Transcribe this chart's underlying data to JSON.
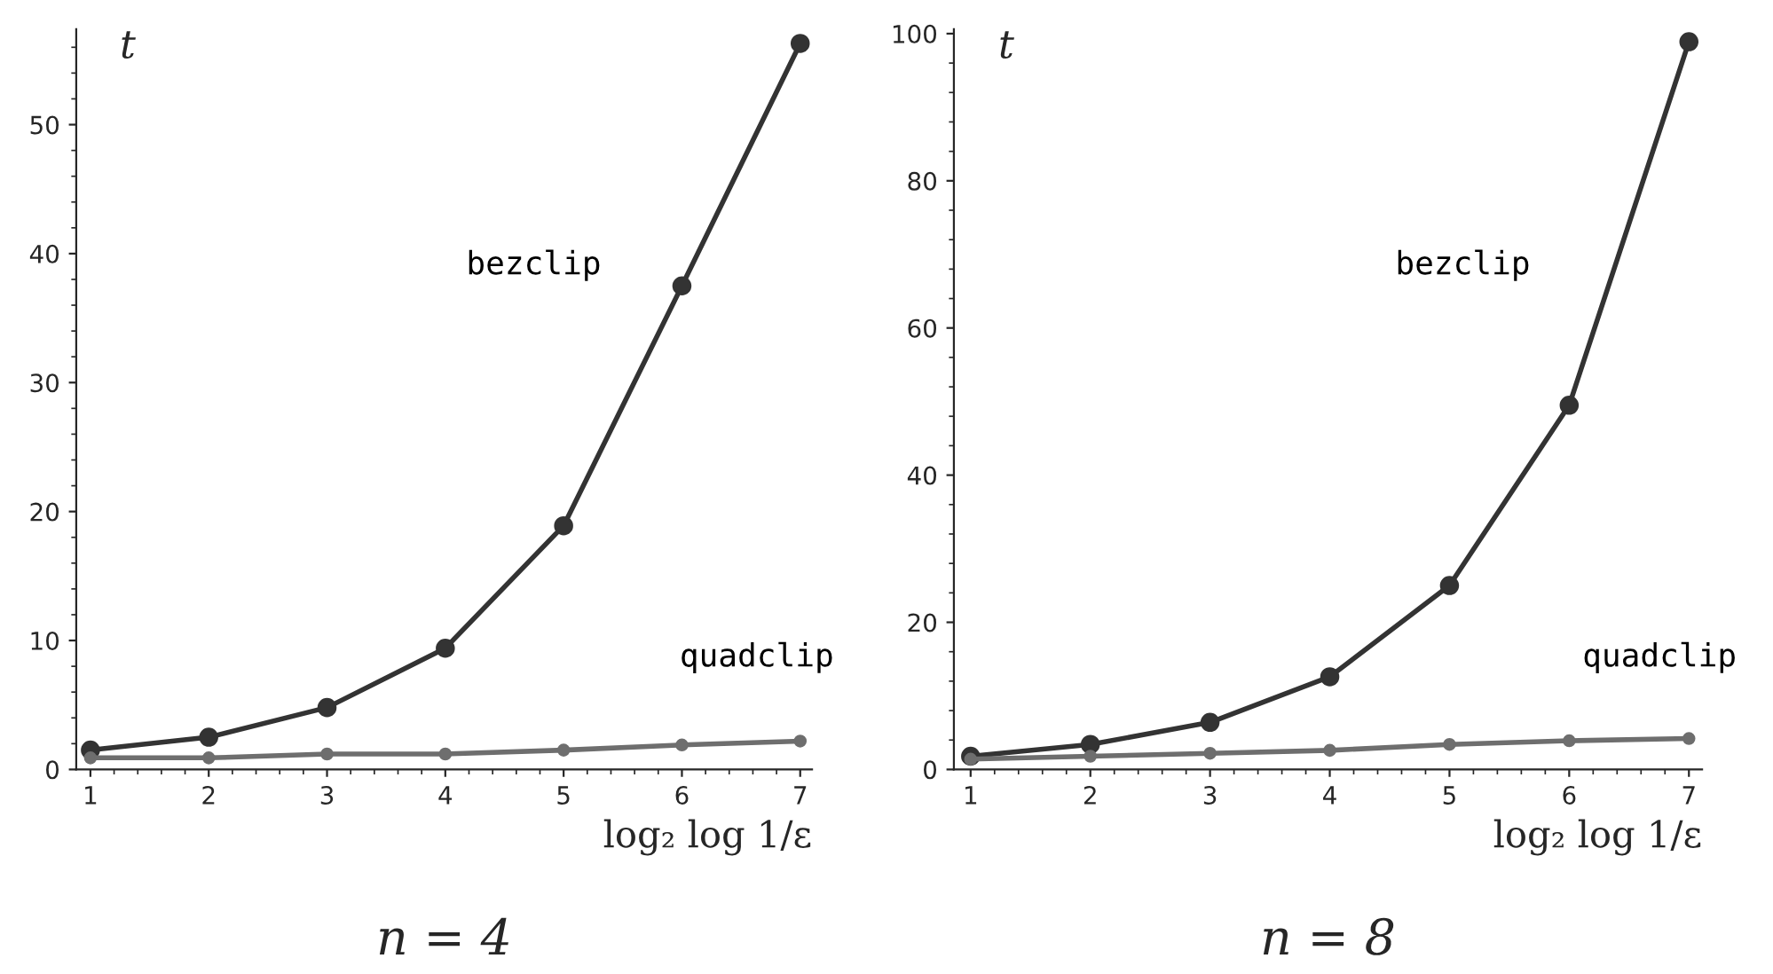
{
  "chart_data": [
    {
      "type": "line",
      "title": "n = 4",
      "xlabel": "log₂ log 1/ε",
      "ylabel": "t",
      "x": [
        1,
        2,
        3,
        4,
        5,
        6,
        7
      ],
      "xlim": [
        0.88,
        7.1
      ],
      "xticks": [
        1,
        2,
        3,
        4,
        5,
        6,
        7
      ],
      "ylim": [
        0,
        57.4
      ],
      "yticks": [
        0,
        10,
        20,
        30,
        40,
        50
      ],
      "marker": "circle",
      "line_style": "solid",
      "grid": false,
      "legend": false,
      "series": [
        {
          "name": "bezclip",
          "color": "#333333",
          "values": [
            1.5,
            2.5,
            4.8,
            9.4,
            18.9,
            37.5,
            56.3
          ]
        },
        {
          "name": "quadclip",
          "color": "#6e6e6e",
          "values": [
            0.9,
            0.9,
            1.2,
            1.2,
            1.5,
            1.9,
            2.2
          ]
        }
      ]
    },
    {
      "type": "line",
      "title": "n = 8",
      "xlabel": "log₂ log 1/ε",
      "ylabel": "t",
      "x": [
        1,
        2,
        3,
        4,
        5,
        6,
        7
      ],
      "xlim": [
        0.86,
        7.11
      ],
      "xticks": [
        1,
        2,
        3,
        4,
        5,
        6,
        7
      ],
      "ylim": [
        0,
        100.6
      ],
      "yticks": [
        0,
        20,
        40,
        60,
        80,
        100
      ],
      "marker": "circle",
      "line_style": "solid",
      "grid": false,
      "legend": false,
      "series": [
        {
          "name": "bezclip",
          "color": "#333333",
          "values": [
            1.8,
            3.4,
            6.4,
            12.6,
            25,
            49.5,
            98.9
          ]
        },
        {
          "name": "quadclip",
          "color": "#6e6e6e",
          "values": [
            1.4,
            1.8,
            2.2,
            2.6,
            3.4,
            3.9,
            4.2
          ]
        }
      ]
    }
  ]
}
